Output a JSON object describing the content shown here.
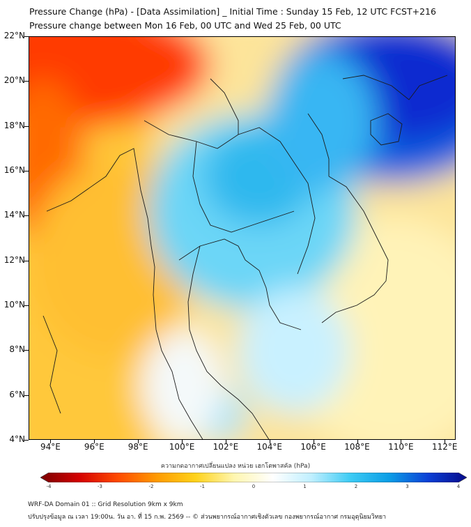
{
  "title": {
    "line1": "Pressure Change (hPa) - [Data Assimilation] _ Initial Time : Sunday 15 Feb, 12 UTC FCST+216",
    "line2": "Pressure change between Mon 16 Feb, 00 UTC and Wed 25 Feb, 00 UTC"
  },
  "map": {
    "lat_range": [
      4,
      22
    ],
    "lon_range": [
      93,
      112.5
    ],
    "lat_ticks": [
      "22°N",
      "20°N",
      "18°N",
      "16°N",
      "14°N",
      "12°N",
      "10°N",
      "8°N",
      "6°N",
      "4°N"
    ],
    "lon_ticks": [
      "94°E",
      "96°E",
      "98°E",
      "100°E",
      "102°E",
      "104°E",
      "106°E",
      "108°E",
      "110°E",
      "112°E"
    ],
    "lat_values": [
      22,
      20,
      18,
      16,
      14,
      12,
      10,
      8,
      6,
      4
    ],
    "lon_values": [
      94,
      96,
      98,
      100,
      102,
      104,
      106,
      108,
      110,
      112
    ]
  },
  "colorbar": {
    "label": "ความกดอากาศเปลี่ยนแปลง หน่วย เฮกโตพาสคัล (hPa)",
    "min": -4,
    "max": 4,
    "ticks": [
      "-4",
      "-3",
      "-2",
      "-1",
      "0",
      "1",
      "2",
      "3",
      "4"
    ],
    "colors": [
      "#7a0000",
      "#d40000",
      "#ff4a00",
      "#ff9a00",
      "#ffd21a",
      "#fff6b0",
      "#ffffff",
      "#bfefff",
      "#3ccbf4",
      "#0a9de6",
      "#0a3fd6",
      "#050a8a"
    ]
  },
  "footer": {
    "line1": "WRF-DA Domain 01 :: Grid Resolution 9km x 9km",
    "line2": "ปรับปรุงข้อมูล ณ เวลา 19:00น. วัน อา. ที่ 15 ก.พ. 2569 -- © ส่วนพยากรณ์อากาศเชิงตัวเลข กองพยากรณ์อากาศ กรมอุตุนิยมวิทยา"
  }
}
